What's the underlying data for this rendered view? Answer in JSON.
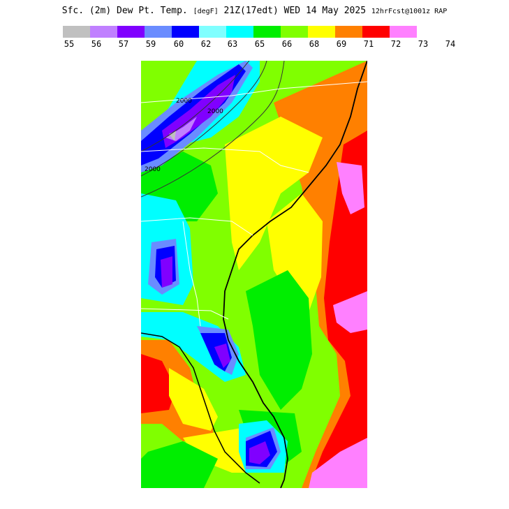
{
  "title": {
    "field": "Sfc. (2m) Dew Pt. Temp.",
    "units": "[degF]",
    "valid": "21Z(17edt) WED 14 May 2025",
    "run": "12hrFcst@1001z RAP"
  },
  "legend": {
    "swatches": [
      {
        "color": "#c0c0c0"
      },
      {
        "color": "#c080ff"
      },
      {
        "color": "#8000ff"
      },
      {
        "color": "#6a8cff"
      },
      {
        "color": "#0000ff"
      },
      {
        "color": "#80ffff"
      },
      {
        "color": "#00ffff"
      },
      {
        "color": "#00ee00"
      },
      {
        "color": "#80ff00"
      },
      {
        "color": "#ffff00"
      },
      {
        "color": "#ff8000"
      },
      {
        "color": "#ff0000"
      },
      {
        "color": "#ff80ff"
      }
    ],
    "ticks": [
      "55",
      "56",
      "57",
      "59",
      "60",
      "62",
      "63",
      "65",
      "66",
      "68",
      "69",
      "71",
      "72",
      "73",
      "74"
    ]
  },
  "map": {
    "contour_labels": [
      "2000",
      "2000",
      "2000"
    ]
  }
}
